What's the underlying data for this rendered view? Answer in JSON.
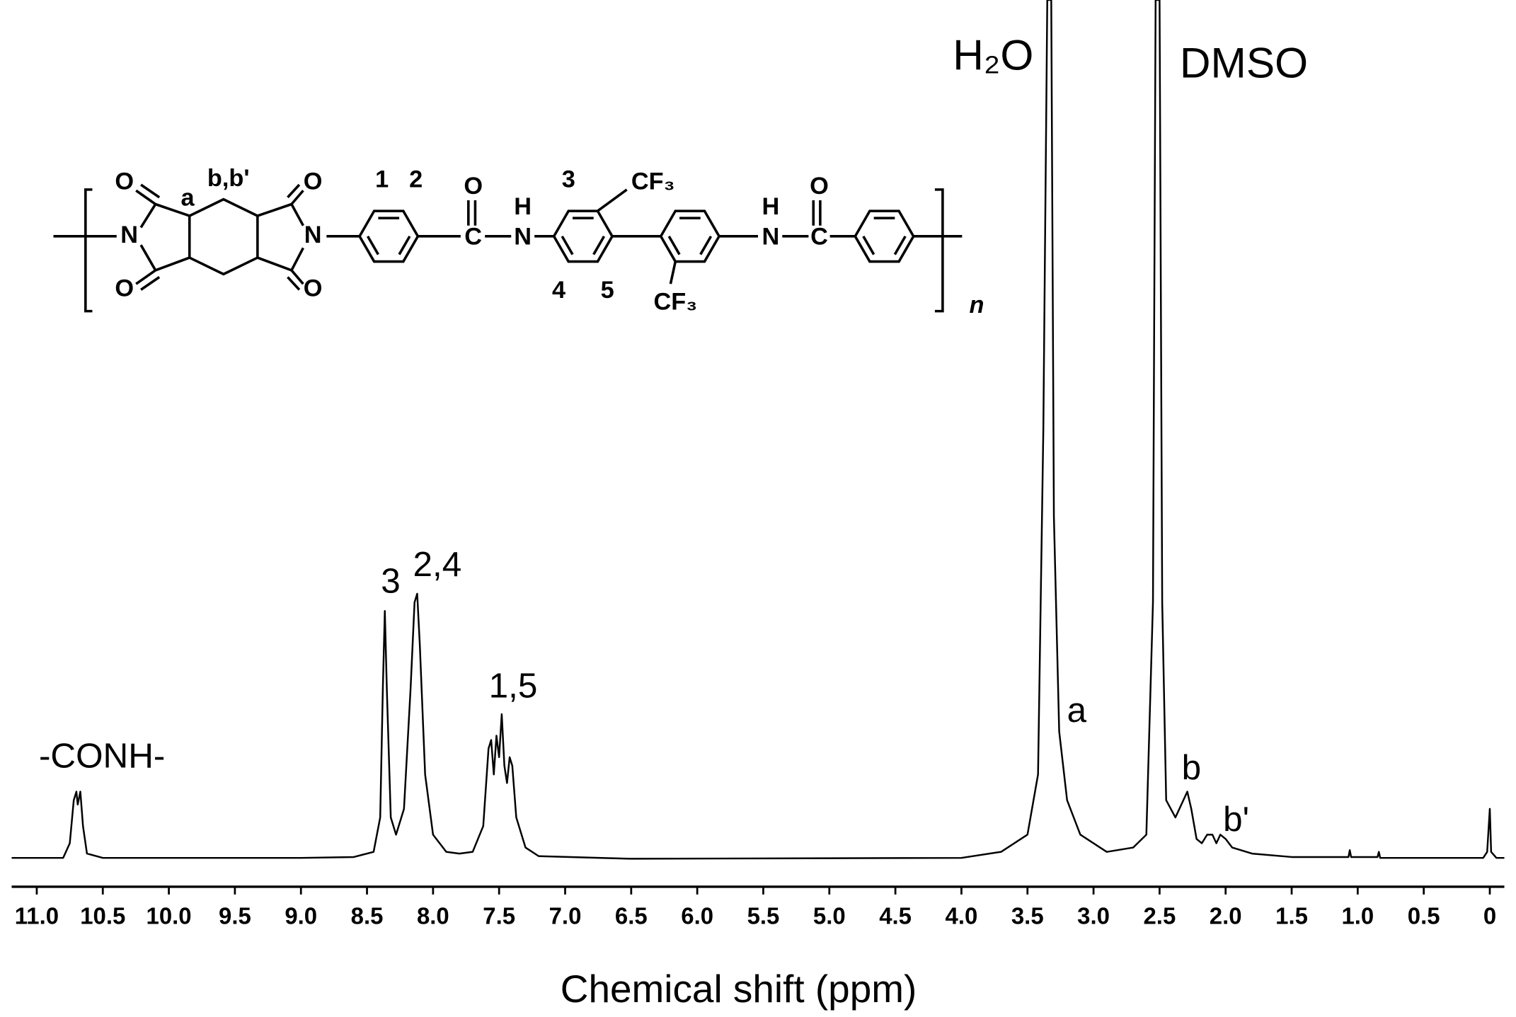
{
  "chart_data": {
    "type": "line",
    "x_label": "Chemical shift (ppm)",
    "color": "#000000",
    "xlim": [
      11.19,
      -0.11
    ],
    "xticks": [
      {
        "value": 11,
        "label": "11.0"
      },
      10.5,
      {
        "value": 10,
        "label": "10.0"
      },
      9.5,
      {
        "value": 9,
        "label": "9.0"
      },
      8.5,
      {
        "value": 8,
        "label": "8.0"
      },
      7.5,
      {
        "value": 7,
        "label": "7.0"
      },
      6.5,
      {
        "value": 6,
        "label": "6.0"
      },
      5.5,
      {
        "value": 5,
        "label": "5.0"
      },
      4.5,
      {
        "value": 4,
        "label": "4.0"
      },
      3.5,
      {
        "value": 3,
        "label": "3.0"
      },
      2.5,
      {
        "value": 2,
        "label": "2.0"
      },
      1.5,
      {
        "value": 1,
        "label": "1.0"
      },
      0.5,
      0
    ],
    "ylim": [
      -1,
      100
    ],
    "x": [
      11.19,
      10.8,
      10.75,
      10.72,
      10.7,
      10.69,
      10.67,
      10.65,
      10.62,
      10.5,
      9.0,
      8.6,
      8.45,
      8.4,
      8.38,
      8.365,
      8.35,
      8.32,
      8.28,
      8.22,
      8.17,
      8.14,
      8.12,
      8.1,
      8.06,
      8.0,
      7.9,
      7.8,
      7.7,
      7.62,
      7.58,
      7.56,
      7.54,
      7.52,
      7.5,
      7.48,
      7.46,
      7.44,
      7.42,
      7.4,
      7.37,
      7.3,
      7.2,
      6.5,
      4.0,
      3.7,
      3.5,
      3.42,
      3.38,
      3.35,
      3.32,
      3.3,
      3.26,
      3.2,
      3.1,
      2.9,
      2.7,
      2.6,
      2.55,
      2.53,
      2.5,
      2.48,
      2.45,
      2.38,
      2.32,
      2.29,
      2.26,
      2.22,
      2.18,
      2.14,
      2.1,
      2.07,
      2.04,
      2.0,
      1.95,
      1.8,
      1.5,
      1.07,
      1.06,
      1.05,
      0.85,
      0.84,
      0.83,
      0.05,
      0.02,
      0.0,
      -0.01,
      -0.05,
      -0.11
    ],
    "values": [
      0.3,
      0.3,
      2,
      7,
      8,
      6.5,
      8,
      4,
      0.8,
      0.3,
      0.3,
      0.4,
      1,
      5,
      20,
      29,
      20,
      5,
      3,
      6,
      20,
      30,
      31,
      25,
      10,
      3,
      1,
      0.8,
      1,
      4,
      13,
      14,
      10,
      14.5,
      12,
      17,
      11,
      9,
      12,
      11,
      5,
      1.5,
      0.5,
      0.2,
      0.3,
      1,
      3,
      10,
      50,
      100,
      100,
      40,
      15,
      7,
      3,
      1,
      1.5,
      3,
      30,
      100,
      100,
      30,
      7,
      5,
      7,
      8,
      6,
      2.5,
      2,
      3,
      3,
      2,
      3,
      2.5,
      1.5,
      0.8,
      0.4,
      0.4,
      1.2,
      0.4,
      0.4,
      1,
      0.3,
      0.3,
      1,
      6,
      1,
      0.3,
      0.3
    ],
    "annotations": [
      "-CONH-",
      "3",
      "2,4",
      "1,5",
      "H₂O",
      "DMSO",
      "a",
      "b",
      "b'"
    ]
  },
  "structure": {
    "labels": [
      "O",
      "N",
      "O",
      "a",
      "b,b'",
      "O",
      "N",
      "O",
      "1",
      "2",
      "O",
      "C",
      "H",
      "N",
      "3",
      "CF₃",
      "4",
      "5",
      "CF₃",
      "H",
      "N",
      "O",
      "C",
      "n"
    ]
  }
}
